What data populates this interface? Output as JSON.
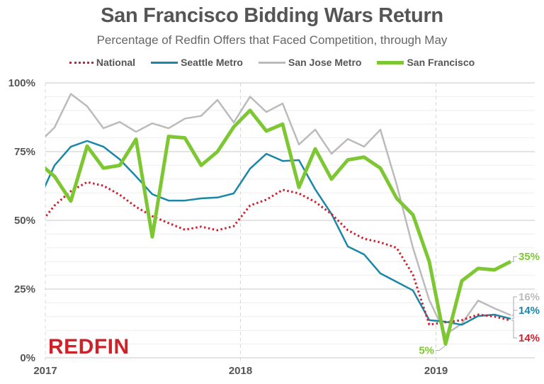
{
  "chart_data": {
    "type": "line",
    "title": "San Francisco Bidding Wars Return",
    "subtitle": "Percentage of Redfin Offers that Faced Competition, through May",
    "xlabel": "",
    "ylabel": "",
    "x": [
      "2016-12",
      "2017-01",
      "2017-02",
      "2017-03",
      "2017-04",
      "2017-05",
      "2017-06",
      "2017-07",
      "2017-08",
      "2017-09",
      "2017-10",
      "2017-11",
      "2017-12",
      "2018-01",
      "2018-02",
      "2018-03",
      "2018-04",
      "2018-05",
      "2018-06",
      "2018-07",
      "2018-08",
      "2018-09",
      "2018-10",
      "2018-11",
      "2018-12",
      "2019-01",
      "2019-02",
      "2019-03",
      "2019-04",
      "2019-05"
    ],
    "x_ticks": [
      "2017",
      "2018",
      "2019"
    ],
    "y_ticks": [
      "0%",
      "25%",
      "50%",
      "75%",
      "100%"
    ],
    "ylim": [
      0,
      100
    ],
    "grid": "horizontal, major every 25%, minor every 5%",
    "legend_position": "top",
    "series": [
      {
        "name": "National",
        "color": "#d0202e",
        "style": "dotted",
        "values": [
          48,
          55.4,
          60.6,
          63.9,
          62.6,
          59.3,
          54.9,
          51.5,
          49,
          46.6,
          47.7,
          46.4,
          47.9,
          55.4,
          57.5,
          61.1,
          59.8,
          56.7,
          52.3,
          46.4,
          43.3,
          42,
          40,
          30.2,
          12.1,
          12.9,
          13.7,
          15.7,
          15,
          13.6
        ],
        "end_label": "14%"
      },
      {
        "name": "Seattle Metro",
        "color": "#1a87a8",
        "style": "solid",
        "values": [
          57,
          70,
          76.8,
          78.9,
          76.8,
          72.2,
          66,
          59.5,
          57.2,
          57.2,
          58,
          58.3,
          59.8,
          68.8,
          74.2,
          71.6,
          71.9,
          61.3,
          52.3,
          40.5,
          37.6,
          30.7,
          27.6,
          24.5,
          13.7,
          13.1,
          12,
          15.2,
          15.7,
          14.2
        ],
        "end_label": "14%"
      },
      {
        "name": "San Jose Metro",
        "color": "#bbbbbb",
        "style": "solid",
        "values": [
          78,
          83.8,
          96,
          91.5,
          83.5,
          85.8,
          82.2,
          85.3,
          83.5,
          87,
          88,
          93.8,
          85.6,
          95,
          89.4,
          92.5,
          77.6,
          83,
          74.2,
          79.6,
          76.8,
          83,
          63,
          40,
          21,
          8.5,
          12.4,
          20.8,
          18,
          15.5
        ],
        "end_label": "16%"
      },
      {
        "name": "San Francisco",
        "color": "#7dc832",
        "style": "solid",
        "values": [
          71,
          66,
          57,
          77,
          69,
          70,
          79.5,
          44,
          80.5,
          80,
          70,
          75,
          84,
          90,
          82.5,
          85,
          62,
          76,
          65,
          72,
          73,
          69,
          58,
          52,
          35,
          5,
          28,
          32.5,
          32,
          35
        ],
        "end_label": "35%",
        "min_label": "5%"
      }
    ]
  },
  "logo": "REDFIN",
  "colors": {
    "title": "#555555",
    "logo": "#cf2128"
  }
}
